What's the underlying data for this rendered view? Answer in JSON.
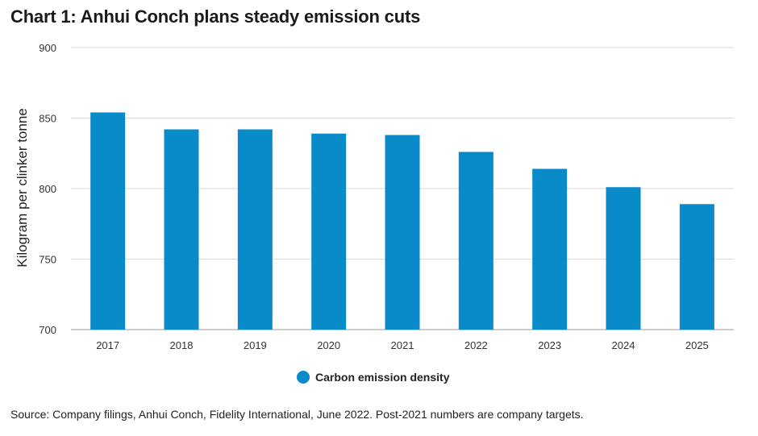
{
  "header": {
    "title": "Chart 1: Anhui Conch plans steady emission cuts"
  },
  "footer": {
    "source": "Source: Company filings, Anhui Conch, Fidelity International, June 2022. Post-2021 numbers are company targets."
  },
  "colors": {
    "bar": "#0a8bc9",
    "grid": "#d9d9d9",
    "axis": "#9a9a9a"
  },
  "chart_data": {
    "type": "bar",
    "title": "Chart 1: Anhui Conch plans steady emission cuts",
    "xlabel": "",
    "ylabel": "Kilogram per clinker tonne",
    "categories": [
      "2017",
      "2018",
      "2019",
      "2020",
      "2021",
      "2022",
      "2023",
      "2024",
      "2025"
    ],
    "series": [
      {
        "name": "Carbon emission density",
        "values": [
          854,
          842,
          842,
          839,
          838,
          826,
          814,
          801,
          789
        ]
      }
    ],
    "ylim": [
      700,
      900
    ],
    "yticks": [
      700,
      750,
      800,
      850,
      900
    ],
    "grid": true,
    "legend": "bottom-center"
  }
}
